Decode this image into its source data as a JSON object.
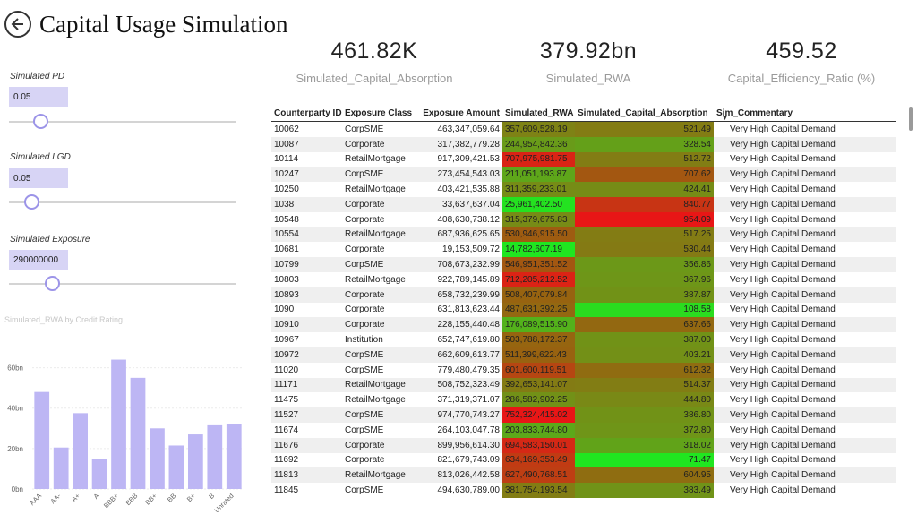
{
  "header": {
    "title": "Capital Usage Simulation",
    "back_icon": "back-arrow-icon"
  },
  "kpis": [
    {
      "value": "461.82K",
      "label": "Simulated_Capital_Absorption"
    },
    {
      "value": "379.92bn",
      "label": "Simulated_RWA"
    },
    {
      "value": "459.52",
      "label": "Capital_Efficiency_Ratio (%)"
    }
  ],
  "slicers": {
    "pd": {
      "label": "Simulated PD",
      "value": "0.05",
      "level": 0.14
    },
    "lgd": {
      "label": "Simulated LGD",
      "value": "0.05",
      "level": 0.1
    },
    "exposure": {
      "label": "Simulated Exposure",
      "value": "290000000",
      "level": 0.19
    }
  },
  "colors": {
    "accent": "#9c94e8",
    "input_bg": "#d7d4f5",
    "bar": "#bdb6f4"
  },
  "chart_data": {
    "type": "bar",
    "title": "Simulated_RWA by Credit Rating",
    "categories": [
      "AAA",
      "AA-",
      "A+",
      "A",
      "BBB+",
      "BBB",
      "BB+",
      "BB",
      "B+",
      "B",
      "Unrated"
    ],
    "values": [
      48,
      20.5,
      37.5,
      15,
      64,
      55,
      30,
      21.5,
      27,
      31.5,
      32
    ],
    "y_ticks": [
      "0bn",
      "20bn",
      "40bn",
      "60bn"
    ],
    "ylim": [
      0,
      70
    ],
    "grid": true
  },
  "table": {
    "columns": [
      "Counterparty ID",
      "Exposure Class",
      "Exposure Amount",
      "Simulated_RWA",
      "Simulated_Capital_Absorption",
      "Sim_Commentary"
    ],
    "rows": [
      [
        "10062",
        "CorpSME",
        "463,347,059.64",
        "357,609,528.19",
        "521.49",
        "Very High Capital Demand"
      ],
      [
        "10087",
        "Corporate",
        "317,382,779.28",
        "244,954,842.36",
        "328.54",
        "Very High Capital Demand"
      ],
      [
        "10114",
        "RetailMortgage",
        "917,309,421.53",
        "707,975,981.75",
        "512.72",
        "Very High Capital Demand"
      ],
      [
        "10247",
        "CorpSME",
        "273,454,543.03",
        "211,051,193.87",
        "707.62",
        "Very High Capital Demand"
      ],
      [
        "10250",
        "RetailMortgage",
        "403,421,535.88",
        "311,359,233.01",
        "424.41",
        "Very High Capital Demand"
      ],
      [
        "1038",
        "Corporate",
        "33,637,637.04",
        "25,961,402.50",
        "840.77",
        "Very High Capital Demand"
      ],
      [
        "10548",
        "Corporate",
        "408,630,738.12",
        "315,379,675.83",
        "954.09",
        "Very High Capital Demand"
      ],
      [
        "10554",
        "RetailMortgage",
        "687,936,625.65",
        "530,946,915.50",
        "517.25",
        "Very High Capital Demand"
      ],
      [
        "10681",
        "Corporate",
        "19,153,509.72",
        "14,782,607.19",
        "530.44",
        "Very High Capital Demand"
      ],
      [
        "10799",
        "CorpSME",
        "708,673,232.99",
        "546,951,351.52",
        "356.86",
        "Very High Capital Demand"
      ],
      [
        "10803",
        "RetailMortgage",
        "922,789,145.89",
        "712,205,212.52",
        "367.96",
        "Very High Capital Demand"
      ],
      [
        "10893",
        "Corporate",
        "658,732,239.99",
        "508,407,079.84",
        "387.87",
        "Very High Capital Demand"
      ],
      [
        "1090",
        "Corporate",
        "631,813,623.44",
        "487,631,392.25",
        "108.58",
        "Very High Capital Demand"
      ],
      [
        "10910",
        "Corporate",
        "228,155,440.48",
        "176,089,515.90",
        "637.66",
        "Very High Capital Demand"
      ],
      [
        "10967",
        "Institution",
        "652,747,619.80",
        "503,788,172.37",
        "387.00",
        "Very High Capital Demand"
      ],
      [
        "10972",
        "CorpSME",
        "662,609,613.77",
        "511,399,622.43",
        "403.21",
        "Very High Capital Demand"
      ],
      [
        "11020",
        "CorpSME",
        "779,480,479.35",
        "601,600,119.51",
        "612.32",
        "Very High Capital Demand"
      ],
      [
        "11171",
        "RetailMortgage",
        "508,752,323.49",
        "392,653,141.07",
        "514.37",
        "Very High Capital Demand"
      ],
      [
        "11475",
        "RetailMortgage",
        "371,319,371.07",
        "286,582,902.25",
        "444.80",
        "Very High Capital Demand"
      ],
      [
        "11527",
        "CorpSME",
        "974,770,743.27",
        "752,324,415.02",
        "386.80",
        "Very High Capital Demand"
      ],
      [
        "11674",
        "CorpSME",
        "264,103,047.78",
        "203,833,744.80",
        "372.80",
        "Very High Capital Demand"
      ],
      [
        "11676",
        "Corporate",
        "899,956,614.30",
        "694,583,150.01",
        "318.02",
        "Very High Capital Demand"
      ],
      [
        "11692",
        "Corporate",
        "821,679,743.09",
        "634,169,353.49",
        "71.47",
        "Very High Capital Demand"
      ],
      [
        "11813",
        "RetailMortgage",
        "813,026,442.58",
        "627,490,768.51",
        "604.95",
        "Very High Capital Demand"
      ],
      [
        "11845",
        "CorpSME",
        "494,630,789.00",
        "381,754,193.54",
        "383.49",
        "Very High Capital Demand"
      ]
    ]
  }
}
